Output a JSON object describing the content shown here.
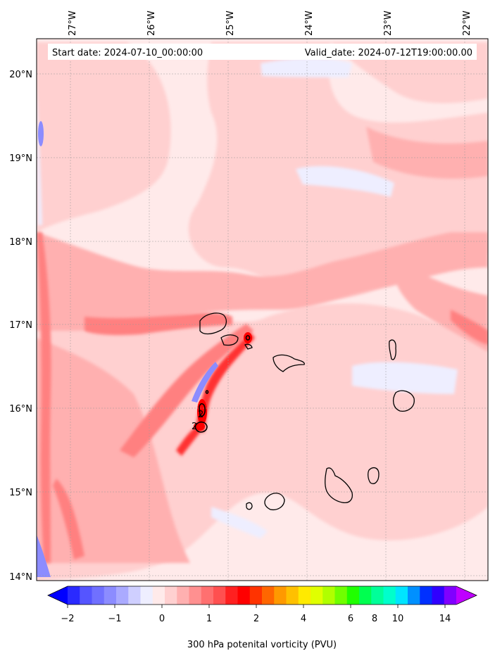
{
  "header": {
    "start_date": "Start date: 2024-07-10_00:00:00",
    "valid_date": "Valid_date: 2024-07-12T19:00:00.00"
  },
  "axes": {
    "lon_labels": [
      "27°W",
      "26°W",
      "25°W",
      "24°W",
      "23°W",
      "22°W"
    ],
    "lat_labels": [
      "20°N",
      "19°N",
      "18°N",
      "17°N",
      "16°N",
      "15°N",
      "14°N"
    ]
  },
  "contour_label": "2",
  "colorbar": {
    "title": "300 hPa potenital vorticity (PVU)",
    "tick_labels": [
      "−2",
      "−1",
      "0",
      "1",
      "2",
      "4",
      "6",
      "8",
      "10",
      "14"
    ],
    "colors": [
      "#0000ff",
      "#2a2aff",
      "#5555ff",
      "#7070ff",
      "#8c8cff",
      "#aaaaff",
      "#cfcfff",
      "#eeeeff",
      "#ffeaea",
      "#ffd0d0",
      "#ffb0b0",
      "#ff9090",
      "#ff7070",
      "#ff5050",
      "#ff2020",
      "#ff0000",
      "#ff3300",
      "#ff6600",
      "#ff9900",
      "#ffc000",
      "#ffea00",
      "#e0ff00",
      "#b0ff00",
      "#70ff00",
      "#20ff00",
      "#00ff50",
      "#00ff99",
      "#00ffcc",
      "#00e5ff",
      "#0090ff",
      "#0030ff",
      "#3000ff",
      "#8000ff",
      "#bf00ff"
    ]
  },
  "map_colors": {
    "background": "#ffeaea",
    "pale_pink": "#ffd0d0",
    "pink": "#ffb0b0",
    "mid_red": "#ff8080",
    "red": "#ff3030",
    "dark_red": "#ff0000",
    "pale_blue": "#eeeeff",
    "light_blue": "#c8c8ff",
    "blue": "#8c8cff",
    "coast": "#000000"
  }
}
